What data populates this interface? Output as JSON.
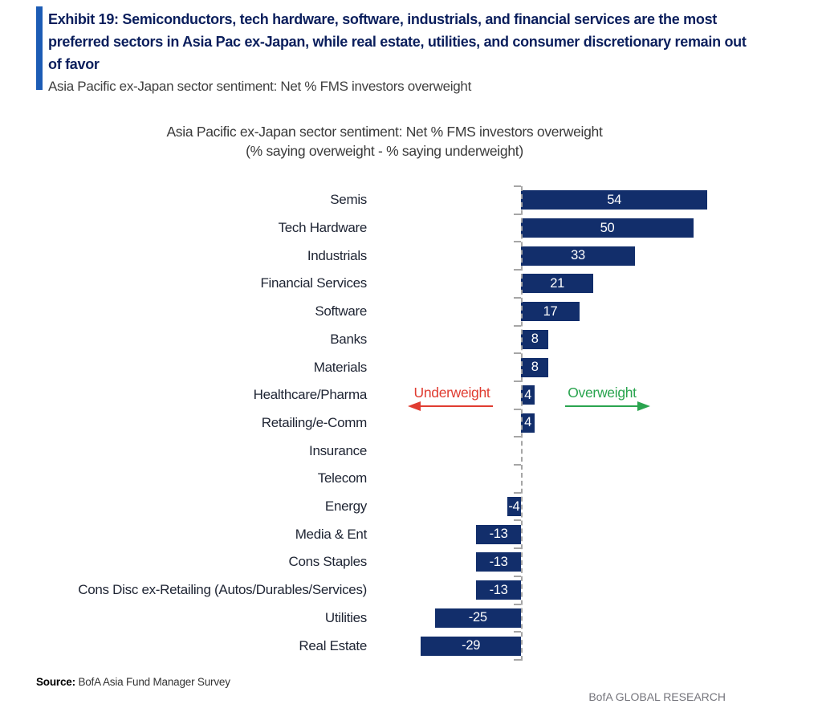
{
  "header": {
    "exhibit_title": "Exhibit 19: Semiconductors, tech hardware, software, industrials, and financial services are the most preferred sectors in Asia Pac ex-Japan, while real estate, utilities, and consumer discretionary remain out of favor",
    "subtitle": "Asia Pacific ex-Japan sector sentiment: Net % FMS investors overweight"
  },
  "chart_data": {
    "type": "bar",
    "orientation": "horizontal",
    "title": "Asia Pacific ex-Japan sector sentiment: Net % FMS investors overweight",
    "subtitle": "(% saying overweight - % saying underweight)",
    "xlabel": "",
    "ylabel": "",
    "xlim": [
      -30,
      56
    ],
    "grid": false,
    "legend": "none",
    "categories": [
      "Semis",
      "Tech Hardware",
      "Industrials",
      "Financial Services",
      "Software",
      "Banks",
      "Materials",
      "Healthcare/Pharma",
      "Retailing/e-Comm",
      "Insurance",
      "Telecom",
      "Energy",
      "Media & Ent",
      "Cons Staples",
      "Cons Disc ex-Retailing (Autos/Durables/Services)",
      "Utilities",
      "Real Estate"
    ],
    "values": [
      54,
      50,
      33,
      21,
      17,
      8,
      8,
      4,
      4,
      0,
      0,
      -4,
      -13,
      -13,
      -13,
      -25,
      -29
    ],
    "annotations": {
      "underweight": "Underweight",
      "overweight": "Overweight"
    },
    "colors": {
      "bar": "#122e6b",
      "title_navy": "#0a1e5c",
      "accent_blue": "#1c5cb5",
      "underweight_red": "#e03c31",
      "overweight_green": "#2aa44f",
      "axis_gray": "#a6a6a6"
    }
  },
  "footer": {
    "source_label": "Source:",
    "source_text": "BofA Asia Fund Manager Survey",
    "brand": "BofA GLOBAL RESEARCH"
  }
}
